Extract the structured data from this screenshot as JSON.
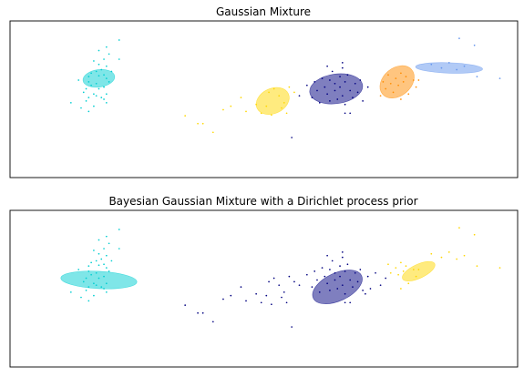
{
  "colors": [
    "#00ced1",
    "#ffd700",
    "#000080",
    "#ff8c00",
    "#6495ed"
  ],
  "chart_data": [
    {
      "type": "scatter",
      "title": "Gaussian Mixture",
      "xlim": [
        -10,
        10
      ],
      "ylim": [
        -3,
        6
      ],
      "grid": false,
      "ticks": false,
      "clusters": [
        {
          "color": "#00ced1",
          "ellipse": {
            "cx": -6.5,
            "cy": 2.7,
            "rx": 0.63,
            "ry": 0.5,
            "angle": 8,
            "color": "#00ced1"
          },
          "points": [
            [
              -5.7,
              4.9
            ],
            [
              -6.2,
              4.5
            ],
            [
              -6.5,
              4.3
            ],
            [
              -6.1,
              4.1
            ],
            [
              -5.7,
              3.8
            ],
            [
              -6.3,
              3.8
            ],
            [
              -6.7,
              3.7
            ],
            [
              -6.5,
              3.5
            ],
            [
              -6.2,
              3.4
            ],
            [
              -6.4,
              3.2
            ],
            [
              -6.0,
              3.1
            ],
            [
              -6.6,
              3.1
            ],
            [
              -6.8,
              3.0
            ],
            [
              -6.3,
              2.9
            ],
            [
              -6.5,
              2.85
            ],
            [
              -6.9,
              2.8
            ],
            [
              -6.2,
              2.7
            ],
            [
              -7.3,
              2.6
            ],
            [
              -6.9,
              2.5
            ],
            [
              -6.1,
              2.5
            ],
            [
              -6.6,
              2.4
            ],
            [
              -6.8,
              2.3
            ],
            [
              -6.3,
              2.2
            ],
            [
              -6.5,
              2.1
            ],
            [
              -7.0,
              2.1
            ],
            [
              -7.1,
              1.9
            ],
            [
              -6.7,
              1.8
            ],
            [
              -6.6,
              1.7
            ],
            [
              -6.2,
              1.8
            ],
            [
              -6.9,
              1.6
            ],
            [
              -7.0,
              1.4
            ],
            [
              -6.3,
              1.5
            ],
            [
              -7.6,
              1.3
            ],
            [
              -6.7,
              1.1
            ],
            [
              -7.2,
              1.0
            ],
            [
              -6.9,
              0.8
            ],
            [
              -6.2,
              1.3
            ],
            [
              -6.4,
              1.6
            ]
          ]
        },
        {
          "color": "#ffd700",
          "ellipse": {
            "cx": 0.35,
            "cy": 1.4,
            "rx": 0.68,
            "ry": 0.72,
            "angle": 25,
            "color": "#ffd700"
          },
          "points": [
            [
              -3.1,
              0.55
            ],
            [
              -2.6,
              0.1
            ],
            [
              -2.4,
              0.1
            ],
            [
              -2.0,
              -0.4
            ],
            [
              -1.6,
              0.9
            ],
            [
              -1.3,
              1.1
            ],
            [
              -0.9,
              1.6
            ],
            [
              -0.7,
              0.8
            ],
            [
              -0.3,
              1.2
            ],
            [
              -0.1,
              0.7
            ],
            [
              0.1,
              1.1
            ],
            [
              0.2,
              1.9
            ],
            [
              0.4,
              2.1
            ],
            [
              0.6,
              1.7
            ],
            [
              0.7,
              1.0
            ],
            [
              0.8,
              1.3
            ],
            [
              0.3,
              0.6
            ],
            [
              1.0,
              2.2
            ],
            [
              1.2,
              1.9
            ],
            [
              0.9,
              0.7
            ]
          ]
        },
        {
          "color": "#000080",
          "ellipse": {
            "cx": 2.85,
            "cy": 2.1,
            "rx": 1.05,
            "ry": 0.85,
            "angle": 8,
            "color": "#000080"
          },
          "points": [
            [
              1.4,
              1.7
            ],
            [
              1.7,
              2.3
            ],
            [
              1.9,
              1.6
            ],
            [
              2.0,
              2.5
            ],
            [
              2.1,
              2.0
            ],
            [
              2.2,
              1.3
            ],
            [
              2.3,
              2.7
            ],
            [
              2.4,
              2.2
            ],
            [
              2.5,
              1.8
            ],
            [
              2.6,
              2.6
            ],
            [
              2.6,
              1.4
            ],
            [
              2.7,
              3.1
            ],
            [
              2.8,
              2.4
            ],
            [
              2.8,
              2.0
            ],
            [
              2.9,
              1.5
            ],
            [
              3.0,
              2.8
            ],
            [
              3.0,
              2.2
            ],
            [
              3.1,
              1.7
            ],
            [
              3.2,
              2.5
            ],
            [
              3.2,
              1.2
            ],
            [
              3.3,
              2.9
            ],
            [
              3.4,
              2.0
            ],
            [
              3.5,
              1.6
            ],
            [
              3.6,
              2.4
            ],
            [
              3.7,
              1.9
            ],
            [
              3.8,
              2.6
            ],
            [
              3.9,
              1.4
            ],
            [
              4.1,
              2.2
            ],
            [
              3.1,
              3.6
            ],
            [
              2.5,
              3.4
            ],
            [
              3.2,
              0.7
            ],
            [
              3.4,
              0.7
            ],
            [
              1.1,
              -0.7
            ],
            [
              3.1,
              3.3
            ]
          ]
        },
        {
          "color": "#ff8c00",
          "ellipse": {
            "cx": 5.25,
            "cy": 2.5,
            "rx": 0.75,
            "ry": 0.8,
            "angle": 40,
            "color": "#ff8c00"
          },
          "points": [
            [
              4.6,
              1.7
            ],
            [
              4.7,
              2.5
            ],
            [
              4.8,
              2.1
            ],
            [
              4.9,
              2.9
            ],
            [
              5.0,
              2.4
            ],
            [
              5.1,
              1.9
            ],
            [
              5.2,
              2.7
            ],
            [
              5.3,
              2.3
            ],
            [
              5.4,
              3.0
            ],
            [
              5.5,
              2.5
            ],
            [
              5.6,
              2.8
            ],
            [
              5.7,
              1.8
            ],
            [
              5.9,
              2.6
            ],
            [
              6.0,
              2.2
            ],
            [
              6.1,
              2.6
            ],
            [
              5.4,
              1.5
            ]
          ]
        },
        {
          "color": "#6495ed",
          "ellipse": {
            "cx": 7.3,
            "cy": 3.3,
            "rx": 1.32,
            "ry": 0.3,
            "angle": -2,
            "color": "#6495ed"
          },
          "points": [
            [
              6.6,
              3.5
            ],
            [
              7.0,
              3.3
            ],
            [
              7.3,
              3.6
            ],
            [
              7.6,
              3.2
            ],
            [
              7.9,
              3.4
            ],
            [
              7.7,
              5.0
            ],
            [
              8.3,
              4.6
            ],
            [
              8.4,
              2.8
            ],
            [
              9.3,
              2.7
            ]
          ]
        }
      ]
    },
    {
      "type": "scatter",
      "title": "Bayesian Gaussian Mixture with a Dirichlet process prior",
      "xlim": [
        -10,
        10
      ],
      "ylim": [
        -3,
        6
      ],
      "grid": false,
      "ticks": false,
      "clusters": [
        {
          "color": "#00ced1",
          "ellipse": {
            "cx": -6.5,
            "cy": 2.0,
            "rx": 1.5,
            "ry": 0.5,
            "angle": -3,
            "color": "#00ced1"
          },
          "points": [
            [
              -5.7,
              4.9
            ],
            [
              -6.2,
              4.5
            ],
            [
              -6.5,
              4.3
            ],
            [
              -6.1,
              4.1
            ],
            [
              -5.7,
              3.8
            ],
            [
              -6.3,
              3.8
            ],
            [
              -6.7,
              3.7
            ],
            [
              -6.5,
              3.5
            ],
            [
              -6.2,
              3.4
            ],
            [
              -6.4,
              3.2
            ],
            [
              -6.0,
              3.1
            ],
            [
              -6.6,
              3.1
            ],
            [
              -6.8,
              3.0
            ],
            [
              -6.3,
              2.9
            ],
            [
              -6.5,
              2.85
            ],
            [
              -6.9,
              2.8
            ],
            [
              -6.2,
              2.7
            ],
            [
              -7.3,
              2.6
            ],
            [
              -6.9,
              2.5
            ],
            [
              -6.1,
              2.5
            ],
            [
              -6.6,
              2.4
            ],
            [
              -6.8,
              2.3
            ],
            [
              -6.3,
              2.2
            ],
            [
              -6.5,
              2.1
            ],
            [
              -7.0,
              2.1
            ],
            [
              -7.1,
              1.9
            ],
            [
              -6.7,
              1.8
            ],
            [
              -6.6,
              1.7
            ],
            [
              -6.2,
              1.8
            ],
            [
              -6.9,
              1.6
            ],
            [
              -7.0,
              1.4
            ],
            [
              -6.3,
              1.5
            ],
            [
              -7.6,
              1.3
            ],
            [
              -6.7,
              1.1
            ],
            [
              -7.2,
              1.0
            ],
            [
              -6.9,
              0.8
            ],
            [
              -6.2,
              1.3
            ],
            [
              -6.4,
              1.6
            ]
          ]
        },
        {
          "color": "#000080",
          "ellipse": {
            "cx": 2.9,
            "cy": 1.6,
            "rx": 1.05,
            "ry": 0.8,
            "angle": 25,
            "color": "#000080"
          },
          "points": [
            [
              -3.1,
              0.55
            ],
            [
              -2.6,
              0.1
            ],
            [
              -2.4,
              0.1
            ],
            [
              -2.0,
              -0.4
            ],
            [
              -1.6,
              0.9
            ],
            [
              -1.3,
              1.1
            ],
            [
              -0.9,
              1.6
            ],
            [
              -0.7,
              0.8
            ],
            [
              -0.3,
              1.2
            ],
            [
              -0.1,
              0.7
            ],
            [
              0.1,
              1.1
            ],
            [
              0.2,
              1.9
            ],
            [
              0.4,
              2.1
            ],
            [
              0.6,
              1.7
            ],
            [
              0.7,
              1.0
            ],
            [
              0.8,
              1.3
            ],
            [
              0.3,
              0.6
            ],
            [
              1.0,
              2.2
            ],
            [
              1.2,
              1.9
            ],
            [
              0.9,
              0.7
            ],
            [
              1.4,
              1.7
            ],
            [
              1.7,
              2.3
            ],
            [
              1.9,
              1.6
            ],
            [
              2.0,
              2.5
            ],
            [
              2.1,
              2.0
            ],
            [
              2.2,
              1.3
            ],
            [
              2.3,
              2.7
            ],
            [
              2.4,
              2.2
            ],
            [
              2.5,
              1.8
            ],
            [
              2.6,
              2.6
            ],
            [
              2.6,
              1.4
            ],
            [
              2.7,
              3.1
            ],
            [
              2.8,
              2.4
            ],
            [
              2.8,
              2.0
            ],
            [
              2.9,
              1.5
            ],
            [
              3.0,
              2.8
            ],
            [
              3.0,
              2.2
            ],
            [
              3.1,
              1.7
            ],
            [
              3.2,
              2.5
            ],
            [
              3.2,
              1.2
            ],
            [
              3.3,
              2.9
            ],
            [
              3.4,
              2.0
            ],
            [
              3.5,
              1.6
            ],
            [
              3.6,
              2.4
            ],
            [
              3.7,
              1.9
            ],
            [
              3.8,
              2.6
            ],
            [
              3.9,
              1.4
            ],
            [
              4.1,
              2.2
            ],
            [
              3.1,
              3.6
            ],
            [
              2.5,
              3.4
            ],
            [
              3.2,
              0.7
            ],
            [
              3.4,
              0.7
            ],
            [
              1.1,
              -0.7
            ],
            [
              3.1,
              3.3
            ],
            [
              4.6,
              1.7
            ],
            [
              4.8,
              2.1
            ],
            [
              4.2,
              1.5
            ],
            [
              4.4,
              2.4
            ],
            [
              4.0,
              1.2
            ]
          ]
        },
        {
          "color": "#ffd700",
          "ellipse": {
            "cx": 6.1,
            "cy": 2.5,
            "rx": 0.7,
            "ry": 0.4,
            "angle": 25,
            "color": "#ffd700"
          },
          "points": [
            [
              4.9,
              2.9
            ],
            [
              5.0,
              2.4
            ],
            [
              5.2,
              2.7
            ],
            [
              5.3,
              2.3
            ],
            [
              5.4,
              3.0
            ],
            [
              5.5,
              2.5
            ],
            [
              5.6,
              2.8
            ],
            [
              5.7,
              1.8
            ],
            [
              5.9,
              2.6
            ],
            [
              6.0,
              2.2
            ],
            [
              6.1,
              2.6
            ],
            [
              5.4,
              1.5
            ],
            [
              6.6,
              3.5
            ],
            [
              7.0,
              3.3
            ],
            [
              7.3,
              3.6
            ],
            [
              7.6,
              3.2
            ],
            [
              7.9,
              3.4
            ],
            [
              7.7,
              5.0
            ],
            [
              8.3,
              4.6
            ],
            [
              8.4,
              2.8
            ],
            [
              9.3,
              2.7
            ]
          ]
        }
      ]
    }
  ]
}
